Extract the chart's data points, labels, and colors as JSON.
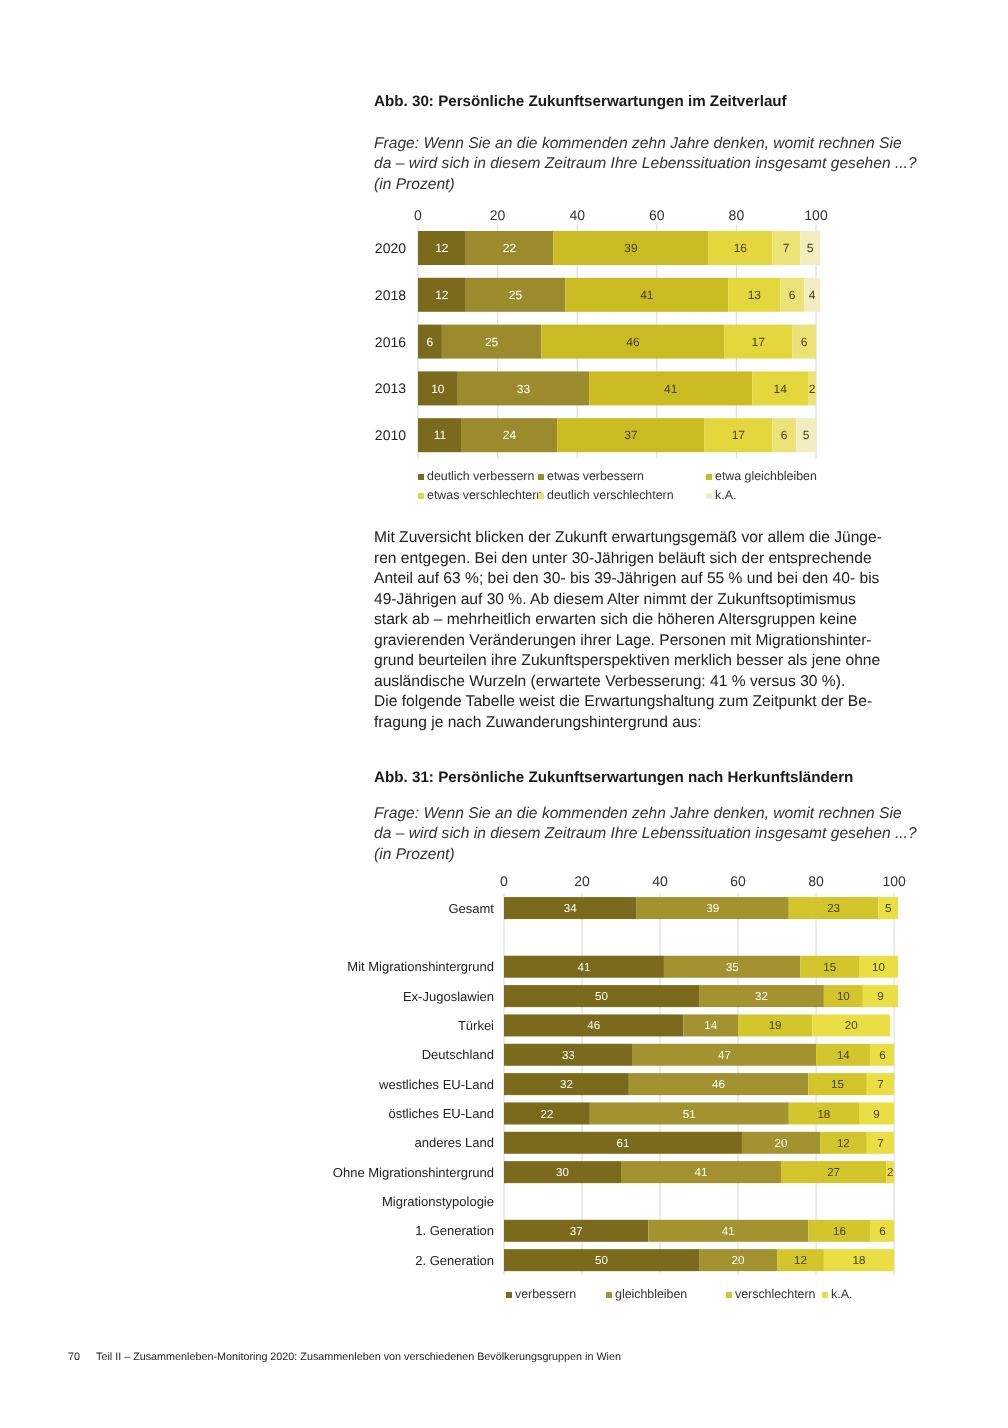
{
  "chart_data": [
    {
      "type": "bar",
      "orientation": "horizontal",
      "stacked": true,
      "title": "Abb. 30: Persönliche Zukunftserwartungen im Zeitverlauf",
      "subtitle": "Frage: Wenn Sie an die kommenden zehn Jahre denken, womit rechnen Sie\nda – wird sich in diesem Zeitraum Ihre Lebenssituation insgesamt gesehen ...?\n(in Prozent)",
      "categories": [
        "2020",
        "2018",
        "2016",
        "2013",
        "2010"
      ],
      "series": [
        {
          "name": "deutlich verbessern",
          "color": "#7b6a1b",
          "values": [
            12,
            12,
            6,
            10,
            11
          ]
        },
        {
          "name": "etwas verbessern",
          "color": "#9c8b2c",
          "values": [
            22,
            25,
            25,
            33,
            24
          ]
        },
        {
          "name": "etwa gleichbleiben",
          "color": "#cbbb22",
          "values": [
            39,
            41,
            46,
            41,
            37
          ]
        },
        {
          "name": "etwas verschlechtern",
          "color": "#e3d73d",
          "values": [
            16,
            13,
            17,
            14,
            17
          ]
        },
        {
          "name": "deutlich verschlechtern",
          "color": "#ebe278",
          "values": [
            7,
            6,
            6,
            2,
            6
          ]
        },
        {
          "name": "k.A.",
          "color": "#f2edc0",
          "values": [
            5,
            4,
            null,
            null,
            5
          ]
        }
      ],
      "xlim": [
        0,
        101
      ],
      "xticks": [
        0,
        20,
        40,
        60,
        80,
        100
      ],
      "grid": "x",
      "legend": "bottom",
      "data_labels": true,
      "annotations": [
        "Mit Zuversicht blicken der Zukunft erwartungsgemäß vor allem die Jünge-\nren entgegen. Bei den unter 30-Jährigen beläuft sich der entsprechende\nAnteil auf 63 %; bei den 30- bis 39-Jährigen auf 55 % und bei den 40- bis\n49-Jährigen auf 30 %. Ab diesem Alter nimmt der Zukunftsoptimismus\nstark ab – mehrheitlich erwarten sich die höheren Altersgruppen keine\ngravierenden Veränderungen ihrer Lage. Personen mit Migrationshinter-\ngrund beurteilen ihre Zukunftsperspektiven merklich besser als jene ohne\nausländische Wurzeln (erwartete Verbesserung: 41 % versus 30 %).\nDie folgende Tabelle weist die Erwartungshaltung zum Zeitpunkt der Be-\nfragung je nach Zuwanderungshintergrund aus:"
      ]
    },
    {
      "type": "bar",
      "orientation": "horizontal",
      "stacked": true,
      "title": "Abb. 31: Persönliche Zukunftserwartungen nach Herkunftsländern",
      "subtitle": "Frage: Wenn Sie an die kommenden zehn Jahre denken, womit rechnen Sie\nda – wird sich in diesem Zeitraum Ihre Lebenssituation insgesamt gesehen ...?\n(in Prozent)",
      "categories": [
        "Gesamt",
        null,
        "Mit Migrationshintergrund",
        "Ex-Jugoslawien",
        "Türkei",
        "Deutschland",
        "westliches EU-Land",
        "östliches EU-Land",
        "anderes Land",
        "Ohne Migrationshintergrund",
        "Migrationstypologie",
        "1. Generation",
        "2. Generation"
      ],
      "series": [
        {
          "name": "verbessern",
          "color": "#7b6a1b",
          "values": [
            34,
            null,
            41,
            50,
            46,
            33,
            32,
            22,
            61,
            30,
            null,
            37,
            50
          ]
        },
        {
          "name": "gleichbleiben",
          "color": "#a39230",
          "values": [
            39,
            null,
            35,
            32,
            14,
            47,
            46,
            51,
            20,
            41,
            null,
            41,
            20
          ]
        },
        {
          "name": "verschlechtern",
          "color": "#d3c52c",
          "values": [
            23,
            null,
            15,
            10,
            19,
            14,
            15,
            18,
            12,
            27,
            null,
            16,
            12
          ]
        },
        {
          "name": "k.A.",
          "color": "#e9df44",
          "values": [
            5,
            null,
            10,
            9,
            20,
            6,
            7,
            9,
            7,
            2,
            null,
            6,
            18
          ]
        }
      ],
      "xlim": [
        0,
        101
      ],
      "xticks": [
        0,
        20,
        40,
        60,
        80,
        100
      ],
      "grid": "x",
      "legend": "bottom",
      "data_labels": true,
      "annotations": [
        "70",
        "Teil II – Zusammenleben-Monitoring 2020: Zusammenleben von verschiedenen Bevölkerungsgruppen in Wien"
      ]
    }
  ]
}
